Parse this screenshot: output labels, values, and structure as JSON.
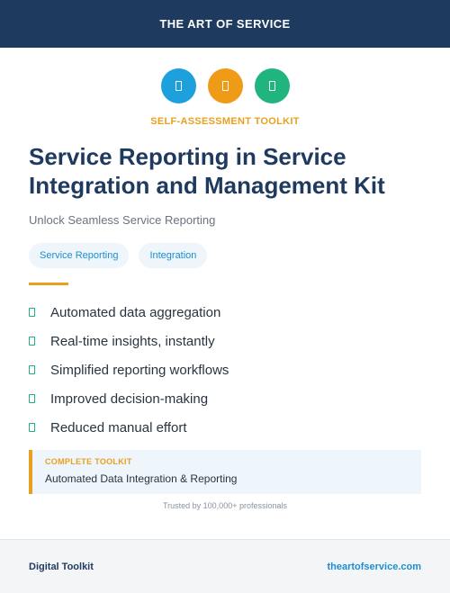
{
  "header": {
    "brand": "THE ART OF SERVICE"
  },
  "icons": [
    {
      "name": "document-icon",
      "color": "#1ea0dc"
    },
    {
      "name": "clipboard-icon",
      "color": "#ef9b18"
    },
    {
      "name": "checklist-icon",
      "color": "#20b47e"
    }
  ],
  "kicker": "SELF-ASSESSMENT TOOLKIT",
  "title": "Service Reporting in Service Integration and Management Kit",
  "subtitle": "Unlock Seamless Service Reporting",
  "tags": [
    "Service Reporting",
    "Integration"
  ],
  "features": [
    "Automated data aggregation",
    "Real-time insights, instantly",
    "Simplified reporting workflows",
    "Improved decision-making",
    "Reduced manual effort"
  ],
  "callout": {
    "label": "COMPLETE TOOLKIT",
    "text": "Automated Data Integration & Reporting"
  },
  "trusted": "Trusted by 100,000+ professionals",
  "footer": {
    "left": "Digital Toolkit",
    "right": "theartofservice.com"
  },
  "colors": {
    "navy": "#1e3a5f",
    "accent": "#e8a020",
    "link": "#1c8fd1",
    "check": "#24b07a"
  }
}
